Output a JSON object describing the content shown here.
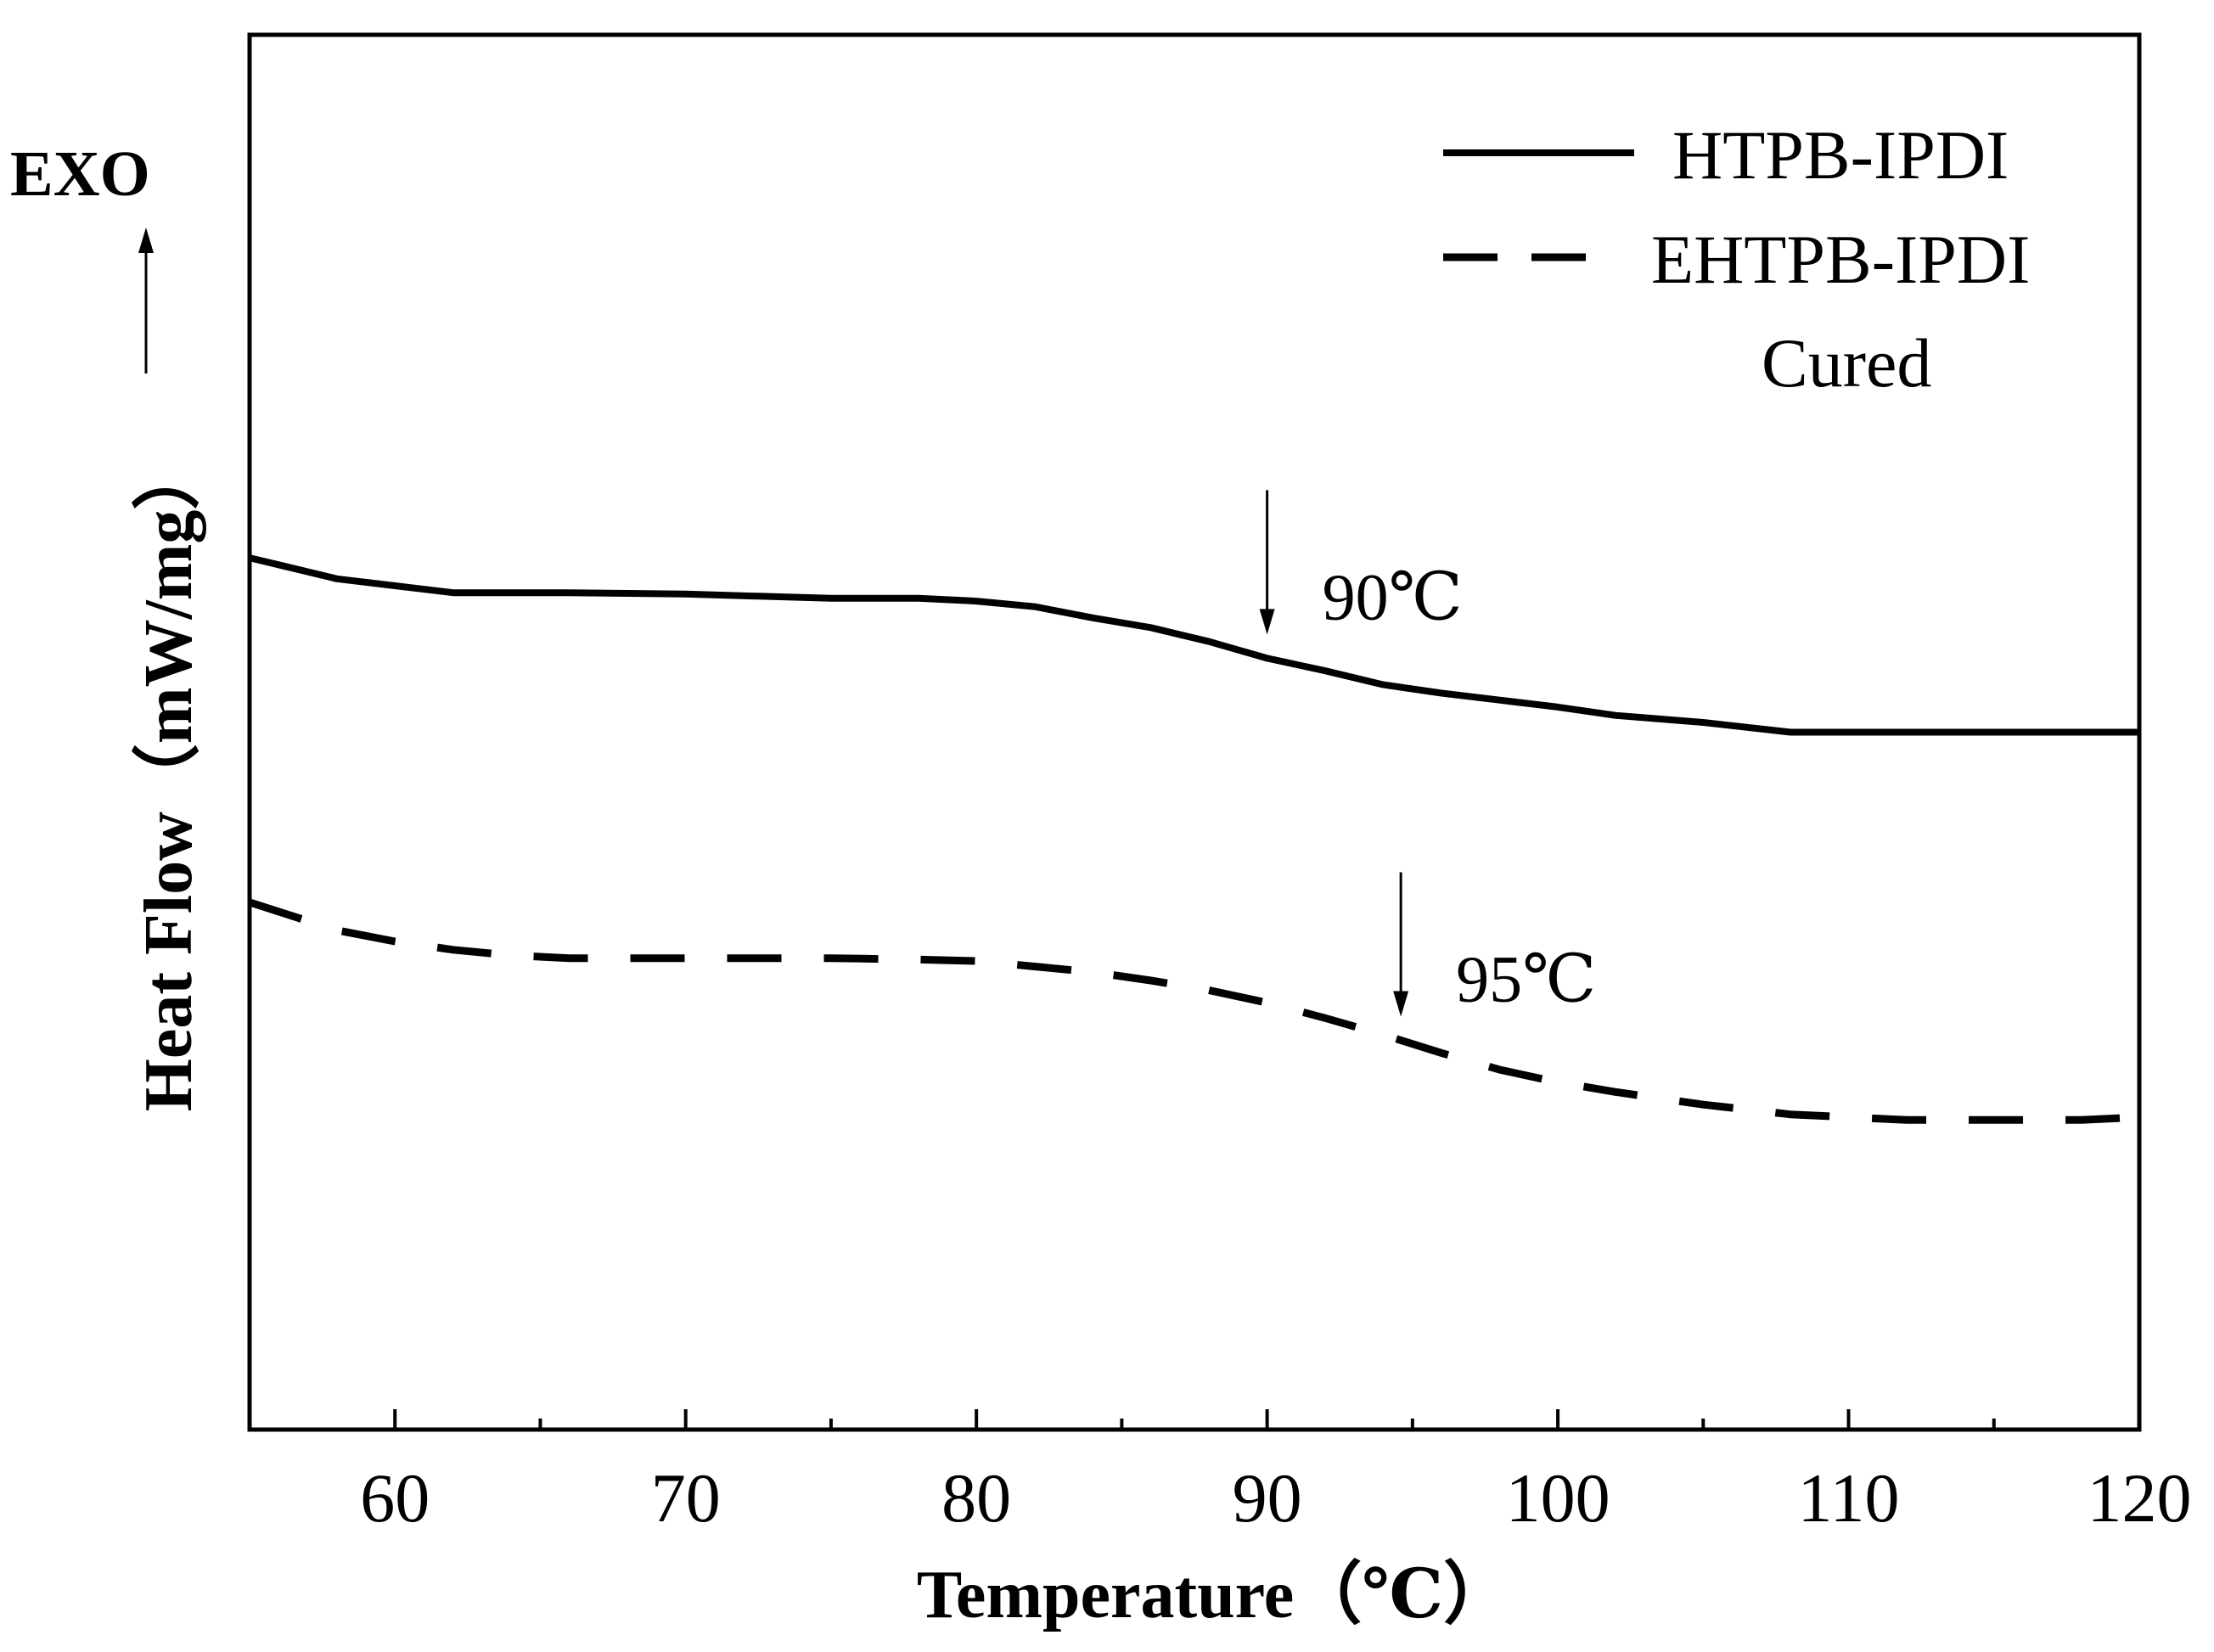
{
  "chart_data": {
    "type": "line",
    "title": "",
    "xlabel": "Temperature（℃）",
    "ylabel": "Heat Flow（mW/mg）",
    "exo_label": "EXO",
    "xlim": [
      55,
      120
    ],
    "ylim": [
      0,
      100
    ],
    "x_ticks": [
      60,
      70,
      80,
      90,
      100,
      110,
      120
    ],
    "x_tick_labels": [
      "60",
      "70",
      "80",
      "90",
      "100",
      "110",
      "120"
    ],
    "y_ticks_shown": false,
    "legend_position": "top-right",
    "legend_note": "Cured",
    "series": [
      {
        "name": "HTPB-IPDI",
        "style": "solid",
        "x": [
          55,
          56,
          58,
          60,
          62,
          64,
          66,
          70,
          75,
          78,
          80,
          82,
          84,
          86,
          88,
          90,
          92,
          94,
          96,
          98,
          100,
          102,
          105,
          108,
          110,
          112,
          115,
          118,
          120
        ],
        "y": [
          62.5,
          62.0,
          61.0,
          60.5,
          60.0,
          60.0,
          60.0,
          59.9,
          59.6,
          59.6,
          59.4,
          59.0,
          58.2,
          57.5,
          56.5,
          55.3,
          54.4,
          53.4,
          52.8,
          52.3,
          51.8,
          51.2,
          50.7,
          50.0,
          50.0,
          50.0,
          50.0,
          50.0,
          50.0
        ]
      },
      {
        "name": "EHTPB-IPDI",
        "style": "dashed",
        "x": [
          55,
          58,
          60,
          62,
          64,
          66,
          70,
          75,
          78,
          80,
          82,
          84,
          86,
          88,
          90,
          92,
          94,
          96,
          98,
          100,
          102,
          105,
          108,
          110,
          112,
          115,
          118,
          120
        ],
        "y": [
          37.8,
          35.8,
          35.0,
          34.4,
          34.0,
          33.8,
          33.8,
          33.8,
          33.7,
          33.6,
          33.2,
          32.8,
          32.2,
          31.5,
          30.6,
          29.5,
          28.3,
          27.0,
          25.8,
          24.9,
          24.2,
          23.3,
          22.6,
          22.4,
          22.2,
          22.2,
          22.2,
          22.4
        ]
      }
    ],
    "annotations": [
      {
        "label": "90℃",
        "series": "HTPB-IPDI",
        "x": 90,
        "arrow": "down"
      },
      {
        "label": "95℃",
        "series": "EHTPB-IPDI",
        "x": 94.6,
        "arrow": "down"
      }
    ]
  },
  "colors": {
    "line": "#000000",
    "background": "#ffffff"
  }
}
